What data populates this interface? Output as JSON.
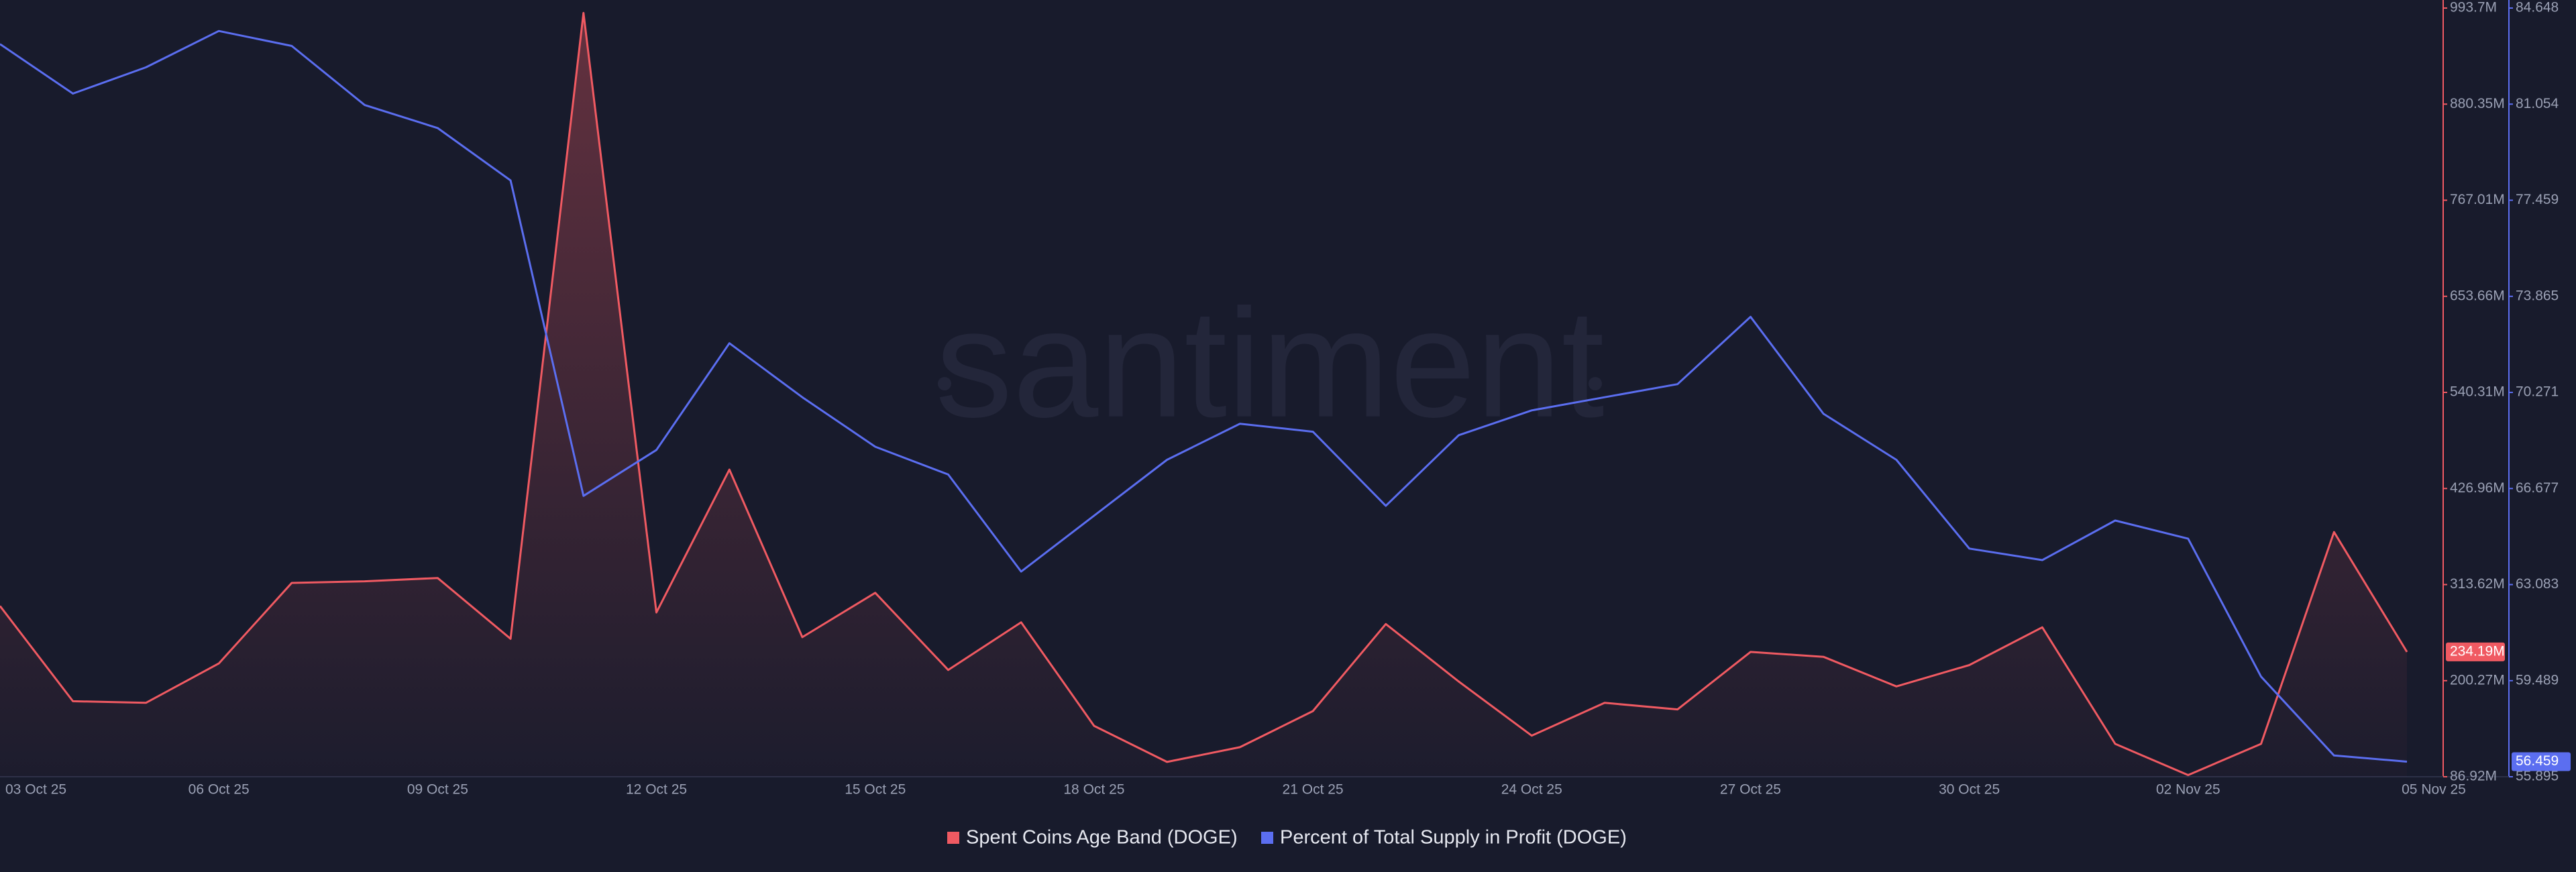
{
  "watermark": "santiment",
  "chart_data": {
    "type": "line",
    "categories": [
      "03 Oct 25",
      null,
      null,
      "06 Oct 25",
      null,
      null,
      "09 Oct 25",
      null,
      null,
      "12 Oct 25",
      null,
      null,
      "15 Oct 25",
      null,
      null,
      "18 Oct 25",
      null,
      null,
      "21 Oct 25",
      null,
      null,
      "24 Oct 25",
      null,
      null,
      "27 Oct 25",
      null,
      null,
      "30 Oct 25",
      null,
      null,
      "02 Nov 25",
      null,
      null,
      "05 Nov 25"
    ],
    "series": [
      {
        "name": "Spent Coins Age Band (DOGE)",
        "color": "#f05a62",
        "axis": "y",
        "values": [
          288.4,
          176.0,
          174.1,
          220.6,
          315.6,
          317.5,
          321.4,
          249.7,
          987.9,
          280.7,
          449.2,
          251.6,
          303.9,
          212.9,
          269.1,
          147.0,
          104.4,
          121.8,
          164.4,
          267.1,
          199.3,
          135.4,
          174.1,
          166.4,
          234.2,
          228.4,
          193.5,
          218.7,
          263.2,
          125.7,
          88.9,
          125.7,
          375.6,
          234.19
        ],
        "value_labels": [
          null,
          null,
          null,
          null,
          null,
          null,
          null,
          null,
          null,
          null,
          null,
          null,
          null,
          null,
          null,
          null,
          null,
          null,
          null,
          null,
          null,
          null,
          null,
          null,
          null,
          null,
          null,
          null,
          null,
          null,
          null,
          null,
          null,
          "234.19M"
        ]
      },
      {
        "name": "Percent of Total Supply in Profit (DOGE)",
        "color": "#5b6ef0",
        "axis": "y2",
        "values": [
          83.3,
          81.45,
          82.43,
          83.79,
          83.23,
          81.02,
          80.16,
          78.2,
          66.4,
          68.12,
          72.11,
          70.09,
          68.24,
          67.2,
          63.57,
          65.66,
          67.75,
          69.1,
          68.8,
          66.03,
          68.67,
          69.6,
          70.09,
          70.58,
          73.1,
          69.47,
          67.75,
          64.43,
          64.0,
          65.48,
          64.8,
          59.64,
          56.69,
          56.459
        ]
      }
    ],
    "ylim": [
      86.92,
      993.7
    ],
    "yticks": [
      {
        "value": 86.92,
        "label": "86.92M"
      },
      {
        "value": 200.27,
        "label": "200.27M"
      },
      {
        "value": 313.62,
        "label": "313.62M"
      },
      {
        "value": 426.96,
        "label": "426.96M"
      },
      {
        "value": 540.31,
        "label": "540.31M"
      },
      {
        "value": 653.66,
        "label": "653.66M"
      },
      {
        "value": 767.01,
        "label": "767.01M"
      },
      {
        "value": 880.35,
        "label": "880.35M"
      },
      {
        "value": 993.7,
        "label": "993.7M"
      }
    ],
    "y2lim": [
      55.895,
      84.648
    ],
    "y2ticks": [
      55.895,
      59.489,
      63.083,
      66.677,
      70.271,
      73.865,
      77.459,
      81.054,
      84.648
    ],
    "grid": false,
    "legend": "bottom"
  }
}
